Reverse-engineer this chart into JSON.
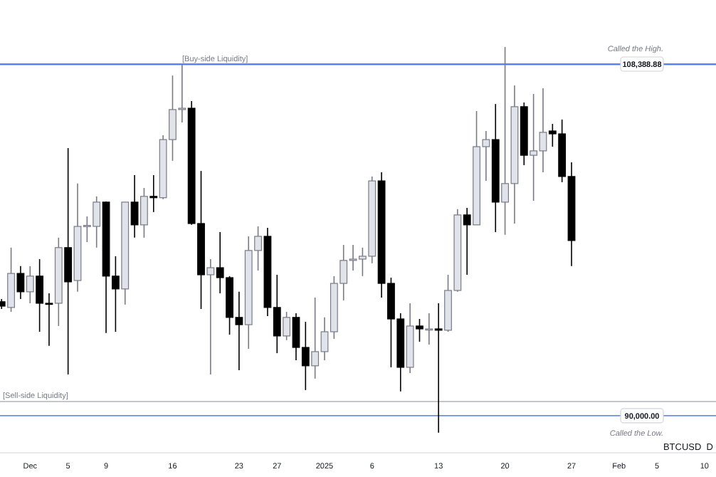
{
  "chart_data": {
    "type": "candlestick",
    "x": [
      "2024-11-28",
      "2024-11-29",
      "2024-11-30",
      "2024-12-01",
      "2024-12-02",
      "2024-12-03",
      "2024-12-04",
      "2024-12-05",
      "2024-12-06",
      "2024-12-07",
      "2024-12-08",
      "2024-12-09",
      "2024-12-10",
      "2024-12-11",
      "2024-12-12",
      "2024-12-13",
      "2024-12-14",
      "2024-12-15",
      "2024-12-16",
      "2024-12-17",
      "2024-12-18",
      "2024-12-19",
      "2024-12-20",
      "2024-12-21",
      "2024-12-22",
      "2024-12-23",
      "2024-12-24",
      "2024-12-25",
      "2024-12-26",
      "2024-12-27",
      "2024-12-28",
      "2024-12-29",
      "2024-12-30",
      "2024-12-31",
      "2025-01-01",
      "2025-01-02",
      "2025-01-03",
      "2025-01-04",
      "2025-01-05",
      "2025-01-06",
      "2025-01-07",
      "2025-01-08",
      "2025-01-09",
      "2025-01-10",
      "2025-01-11",
      "2025-01-12",
      "2025-01-13",
      "2025-01-14",
      "2025-01-15",
      "2025-01-16",
      "2025-01-17",
      "2025-01-18",
      "2025-01-19",
      "2025-01-20",
      "2025-01-21",
      "2025-01-22",
      "2025-01-23",
      "2025-01-24",
      "2025-01-25",
      "2025-01-26",
      "2025-01-27"
    ],
    "ohlc": [
      [
        95960,
        96100,
        95580,
        95730
      ],
      [
        95660,
        98790,
        95430,
        97440
      ],
      [
        97440,
        97820,
        96100,
        96480
      ],
      [
        96480,
        97820,
        95880,
        97300
      ],
      [
        97300,
        98190,
        94390,
        95880
      ],
      [
        95880,
        96400,
        93650,
        95850
      ],
      [
        95880,
        99310,
        94690,
        98790
      ],
      [
        98790,
        104000,
        92160,
        97000
      ],
      [
        97070,
        102140,
        96480,
        99900
      ],
      [
        99900,
        100420,
        99080,
        99950
      ],
      [
        99900,
        101470,
        98790,
        101170
      ],
      [
        101170,
        101200,
        94320,
        97300
      ],
      [
        97300,
        98340,
        94390,
        96630
      ],
      [
        96630,
        101170,
        95810,
        101170
      ],
      [
        101170,
        102580,
        99310,
        99980
      ],
      [
        99980,
        101910,
        99310,
        101470
      ],
      [
        101470,
        102580,
        100650,
        101400
      ],
      [
        101400,
        104670,
        101320,
        104440
      ],
      [
        104440,
        107790,
        103330,
        106010
      ],
      [
        106010,
        108350,
        105340,
        106080
      ],
      [
        106080,
        106450,
        99980,
        100050
      ],
      [
        100050,
        102800,
        95580,
        97370
      ],
      [
        97370,
        98190,
        92160,
        97740
      ],
      [
        97740,
        99600,
        96400,
        97220
      ],
      [
        97220,
        97300,
        94240,
        95140
      ],
      [
        95140,
        96480,
        92380,
        94760
      ],
      [
        94760,
        99380,
        93500,
        98640
      ],
      [
        98640,
        99900,
        97590,
        99380
      ],
      [
        99380,
        99830,
        95210,
        95660
      ],
      [
        95660,
        97370,
        93270,
        94170
      ],
      [
        94170,
        95430,
        93950,
        95140
      ],
      [
        95140,
        95360,
        92900,
        93570
      ],
      [
        93570,
        94910,
        91340,
        92610
      ],
      [
        92610,
        96180,
        91940,
        93350
      ],
      [
        93350,
        95140,
        92900,
        94390
      ],
      [
        94390,
        97300,
        94020,
        96920
      ],
      [
        96920,
        98930,
        96030,
        98120
      ],
      [
        98120,
        98930,
        97590,
        98190
      ],
      [
        98190,
        98790,
        97300,
        98340
      ],
      [
        98340,
        102510,
        97970,
        102280
      ],
      [
        102280,
        102730,
        96180,
        96920
      ],
      [
        96920,
        97220,
        92530,
        95060
      ],
      [
        95060,
        95360,
        91270,
        92530
      ],
      [
        92530,
        95880,
        92230,
        94690
      ],
      [
        94690,
        95060,
        93870,
        94540
      ],
      [
        94540,
        95360,
        93720,
        94540
      ],
      [
        94540,
        95880,
        89110,
        94470
      ],
      [
        94470,
        97370,
        94390,
        96550
      ],
      [
        96550,
        100800,
        96480,
        100500
      ],
      [
        100500,
        100870,
        97370,
        99980
      ],
      [
        99980,
        105930,
        99980,
        104070
      ],
      [
        104070,
        104890,
        102280,
        104440
      ],
      [
        104440,
        106300,
        99600,
        101170
      ],
      [
        101170,
        109280,
        99460,
        102140
      ],
      [
        102140,
        107270,
        100050,
        106160
      ],
      [
        106160,
        106380,
        103100,
        103620
      ],
      [
        103620,
        106830,
        101240,
        103850
      ],
      [
        103850,
        107120,
        102730,
        104820
      ],
      [
        104890,
        105260,
        104070,
        104740
      ],
      [
        104740,
        105490,
        102210,
        102510
      ],
      [
        102510,
        103250,
        97820,
        99160
      ]
    ],
    "xlim": [
      "2024-11-27T20:00",
      "2025-02-11T05:00"
    ],
    "xticks": [
      {
        "value": "2024-12-01",
        "label": "Dec"
      },
      {
        "value": "2024-12-05",
        "label": "5"
      },
      {
        "value": "2024-12-09",
        "label": "9"
      },
      {
        "value": "2024-12-16",
        "label": "16"
      },
      {
        "value": "2024-12-23",
        "label": "23"
      },
      {
        "value": "2024-12-27",
        "label": "27"
      },
      {
        "value": "2025-01-01",
        "label": "2025"
      },
      {
        "value": "2025-01-06",
        "label": "6"
      },
      {
        "value": "2025-01-13",
        "label": "13"
      },
      {
        "value": "2025-01-20",
        "label": "20"
      },
      {
        "value": "2025-01-27",
        "label": "27"
      },
      {
        "value": "2025-02-01",
        "label": "Feb"
      },
      {
        "value": "2025-02-05",
        "label": "5"
      },
      {
        "value": "2025-02-10",
        "label": "10"
      }
    ],
    "ylim": [
      88060,
      111740
    ],
    "tick_labels": "x",
    "grid": false,
    "ref_lines": [
      {
        "axis": "y",
        "value": 108350,
        "label": "[Buy-side Liquidity]",
        "color": "#b2b5be"
      },
      {
        "axis": "y",
        "value": 108388.88,
        "label": "108,388.88",
        "color": "#2962ff"
      },
      {
        "axis": "y",
        "value": 90740,
        "label": "[Sell-side Liquidity]",
        "color": "#b2b5be"
      },
      {
        "axis": "y",
        "value": 90000,
        "label": "90,000.00",
        "color": "#2962ff"
      }
    ],
    "annotations": [
      "Called the High.",
      "Called the Low.",
      "BTCUSD  D"
    ]
  }
}
